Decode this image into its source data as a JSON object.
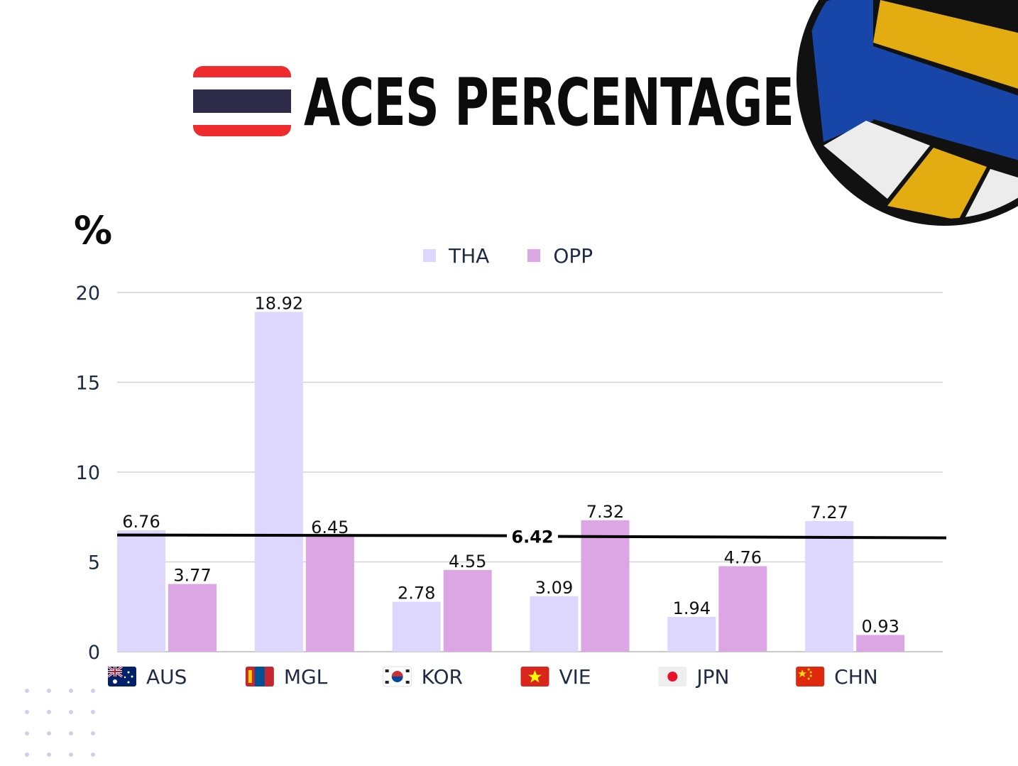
{
  "header": {
    "title": "ACES PERCENTAGE",
    "flag_icon": "thailand-flag-icon",
    "flag_colors": {
      "red": "#ef2b2d",
      "white": "#ffffff",
      "blue": "#2d2a4a"
    }
  },
  "decor": {
    "ball_icon": "volleyball-icon",
    "ball_colors": {
      "blue": "#1846a8",
      "yellow": "#e3ad12",
      "white": "#ececec",
      "outline": "#111111"
    },
    "dots_icon": "dot-grid-decoration",
    "dots_color": "#cfcfea"
  },
  "chart_data": {
    "type": "bar",
    "title": "ACES PERCENTAGE",
    "ylabel": "%",
    "xlabel": "",
    "ylim": [
      0,
      20
    ],
    "yticks": [
      0,
      5,
      10,
      15,
      20
    ],
    "grid": true,
    "legend_position": "top-center",
    "categories": [
      "AUS",
      "MGL",
      "KOR",
      "VIE",
      "JPN",
      "CHN"
    ],
    "category_flag_icons": [
      "australia-flag-icon",
      "mongolia-flag-icon",
      "south-korea-flag-icon",
      "vietnam-flag-icon",
      "japan-flag-icon",
      "china-flag-icon"
    ],
    "series": [
      {
        "name": "THA",
        "color": "#ddd6fd",
        "values": [
          6.76,
          18.92,
          2.78,
          3.09,
          1.94,
          7.27
        ]
      },
      {
        "name": "OPP",
        "color": "#dca6e4",
        "values": [
          3.77,
          6.45,
          4.55,
          7.32,
          4.76,
          0.93
        ]
      }
    ],
    "reference_line": {
      "value": 6.42,
      "label": "6.42",
      "color": "#000000"
    }
  }
}
